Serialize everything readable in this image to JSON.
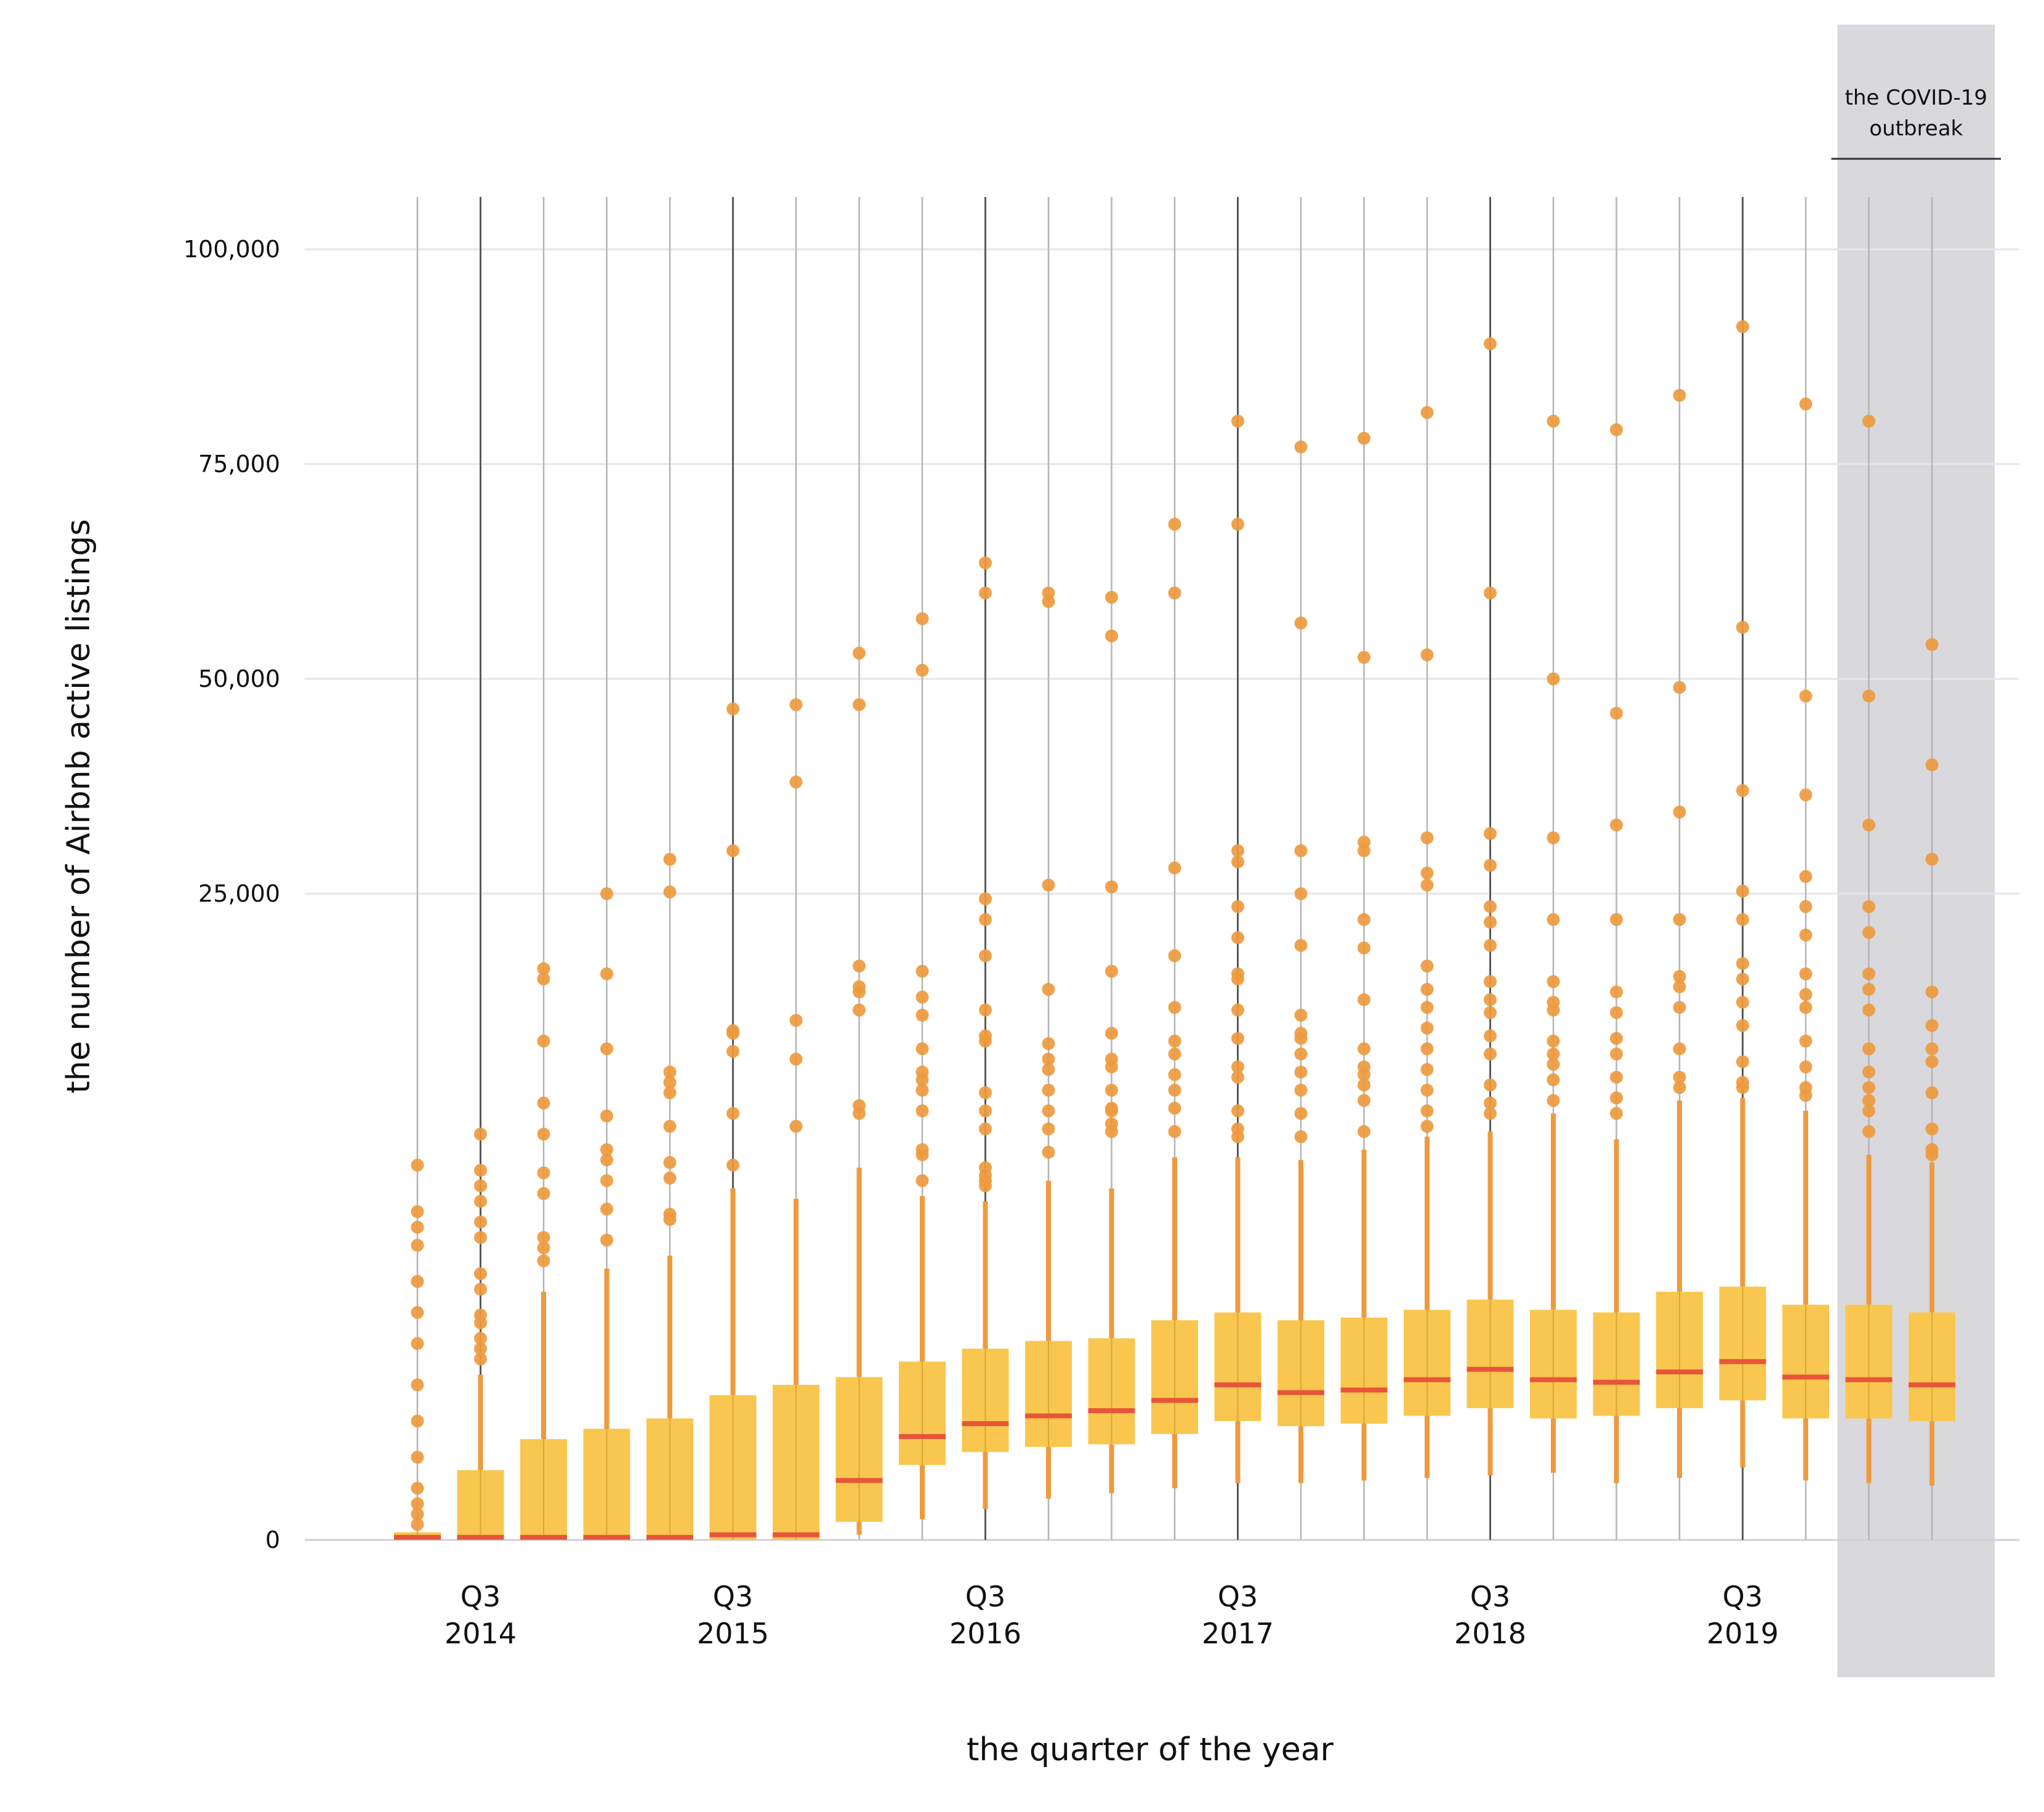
{
  "chart_data": {
    "type": "box",
    "title": "",
    "xlabel": "the quarter of the year",
    "ylabel": "the number of Airbnb active listings",
    "y_scale": "piecewise (compressed above 25,000)",
    "ylim": [
      0,
      100000
    ],
    "y_ticks": [
      {
        "value": 0,
        "label": "0"
      },
      {
        "value": 25000,
        "label": "25,000"
      },
      {
        "value": 50000,
        "label": "50,000"
      },
      {
        "value": 75000,
        "label": "75,000"
      },
      {
        "value": 100000,
        "label": "100,000"
      }
    ],
    "x_tick_labels": [
      {
        "quarter": "2014Q3",
        "line1": "Q3",
        "line2": "2014"
      },
      {
        "quarter": "2015Q3",
        "line1": "Q3",
        "line2": "2015"
      },
      {
        "quarter": "2016Q3",
        "line1": "Q3",
        "line2": "2016"
      },
      {
        "quarter": "2017Q3",
        "line1": "Q3",
        "line2": "2017"
      },
      {
        "quarter": "2018Q3",
        "line1": "Q3",
        "line2": "2018"
      },
      {
        "quarter": "2019Q3",
        "line1": "Q3",
        "line2": "2019"
      }
    ],
    "annotation": {
      "line1": "the COVID-19",
      "line2": "outbreak",
      "from_quarter": "2020Q1",
      "to_quarter": "2020Q2"
    },
    "colors": {
      "box": "#F9C74F",
      "median": "#E8553A",
      "whisker": "#EE9A3E",
      "outlier": "#EE9A3E",
      "shade": "#D9D8DC",
      "grid": "#E6E6E6"
    },
    "quarters": [
      {
        "q": "2014Q2",
        "q1": 0,
        "median": 100,
        "q3": 300,
        "whisker_low": 0,
        "whisker_high": 300,
        "outliers": [
          600,
          1000,
          1400,
          2000,
          3200,
          4600,
          6000,
          7600,
          8800,
          10000,
          11400,
          12100,
          12700,
          14500
        ]
      },
      {
        "q": "2014Q3",
        "q1": 0,
        "median": 100,
        "q3": 2700,
        "whisker_low": 0,
        "whisker_high": 6400,
        "outliers": [
          7000,
          7400,
          7800,
          8400,
          8700,
          9700,
          10300,
          11700,
          12300,
          13100,
          13700,
          14300,
          15700
        ]
      },
      {
        "q": "2014Q4",
        "q1": 0,
        "median": 100,
        "q3": 3900,
        "whisker_low": 0,
        "whisker_high": 9600,
        "outliers": [
          10800,
          11300,
          11700,
          13400,
          14200,
          15700,
          16900,
          19300,
          21700,
          22100
        ]
      },
      {
        "q": "2015Q1",
        "q1": 0,
        "median": 100,
        "q3": 4300,
        "whisker_low": 0,
        "whisker_high": 10500,
        "outliers": [
          11600,
          12800,
          13900,
          14700,
          15100,
          16400,
          19000,
          21900,
          25000
        ]
      },
      {
        "q": "2015Q2",
        "q1": 0,
        "median": 100,
        "q3": 4700,
        "whisker_low": 0,
        "whisker_high": 11000,
        "outliers": [
          12400,
          12600,
          14000,
          14600,
          16000,
          17300,
          17700,
          18100,
          25200,
          29000
        ]
      },
      {
        "q": "2015Q3",
        "q1": 0,
        "median": 200,
        "q3": 5600,
        "whisker_low": 0,
        "whisker_high": 13600,
        "outliers": [
          14500,
          16500,
          18900,
          19600,
          19700,
          30000,
          46500
        ]
      },
      {
        "q": "2015Q4",
        "q1": 0,
        "median": 200,
        "q3": 6000,
        "whisker_low": 0,
        "whisker_high": 13200,
        "outliers": [
          16000,
          18600,
          20100,
          38000,
          47000
        ]
      },
      {
        "q": "2016Q1",
        "q1": 700,
        "median": 2300,
        "q3": 6300,
        "whisker_low": 200,
        "whisker_high": 14400,
        "outliers": [
          16500,
          16800,
          20500,
          21200,
          21400,
          22200,
          47000,
          53000
        ]
      },
      {
        "q": "2016Q2",
        "q1": 2900,
        "median": 4000,
        "q3": 6900,
        "whisker_low": 800,
        "whisker_high": 13300,
        "outliers": [
          13900,
          14900,
          15100,
          16600,
          17400,
          17800,
          18100,
          19000,
          20300,
          21000,
          22000,
          51000,
          57000
        ]
      },
      {
        "q": "2016Q3",
        "q1": 3400,
        "median": 4500,
        "q3": 7400,
        "whisker_low": 1200,
        "whisker_high": 13100,
        "outliers": [
          13700,
          13900,
          14100,
          14400,
          15900,
          16600,
          17300,
          19300,
          19500,
          20500,
          22600,
          24000,
          24800,
          60000,
          63500
        ]
      },
      {
        "q": "2016Q4",
        "q1": 3600,
        "median": 4800,
        "q3": 7700,
        "whisker_low": 1600,
        "whisker_high": 13900,
        "outliers": [
          15000,
          15900,
          16600,
          17400,
          18200,
          18600,
          19200,
          21300,
          26000,
          59000,
          60000
        ]
      },
      {
        "q": "2017Q1",
        "q1": 3700,
        "median": 5000,
        "q3": 7800,
        "whisker_low": 1800,
        "whisker_high": 13600,
        "outliers": [
          15800,
          16100,
          16600,
          16700,
          17400,
          18300,
          18600,
          19600,
          22000,
          25800,
          55000,
          59500
        ]
      },
      {
        "q": "2017Q2",
        "q1": 4100,
        "median": 5400,
        "q3": 8500,
        "whisker_low": 2000,
        "whisker_high": 14800,
        "outliers": [
          15800,
          16700,
          17400,
          18000,
          18800,
          19300,
          20600,
          22600,
          28000,
          60000,
          68000
        ]
      },
      {
        "q": "2017Q3",
        "q1": 4600,
        "median": 6000,
        "q3": 8800,
        "whisker_low": 2200,
        "whisker_high": 14800,
        "outliers": [
          15600,
          15900,
          16600,
          17900,
          18300,
          19400,
          20500,
          21700,
          21900,
          23300,
          24500,
          28700,
          30000,
          68000,
          80000
        ]
      },
      {
        "q": "2017Q4",
        "q1": 4400,
        "median": 5700,
        "q3": 8500,
        "whisker_low": 2200,
        "whisker_high": 14700,
        "outliers": [
          15600,
          16500,
          17400,
          18100,
          18800,
          19400,
          19600,
          20300,
          23000,
          25000,
          30000,
          56500,
          77000
        ]
      },
      {
        "q": "2018Q1",
        "q1": 4500,
        "median": 5800,
        "q3": 8600,
        "whisker_low": 2300,
        "whisker_high": 15100,
        "outliers": [
          15800,
          17000,
          17600,
          18000,
          18300,
          19000,
          20900,
          22900,
          24000,
          30000,
          31000,
          52500,
          78000
        ]
      },
      {
        "q": "2018Q2",
        "q1": 4800,
        "median": 6200,
        "q3": 8900,
        "whisker_low": 2400,
        "whisker_high": 15600,
        "outliers": [
          16000,
          16600,
          17400,
          18200,
          19000,
          19800,
          20600,
          21300,
          22200,
          26000,
          27400,
          31500,
          52800,
          81000
        ]
      },
      {
        "q": "2018Q3",
        "q1": 5100,
        "median": 6600,
        "q3": 9300,
        "whisker_low": 2500,
        "whisker_high": 15800,
        "outliers": [
          16500,
          16900,
          17600,
          18800,
          19500,
          20400,
          20900,
          21600,
          23000,
          23900,
          24500,
          28300,
          32000,
          60000,
          89000
        ]
      },
      {
        "q": "2018Q4",
        "q1": 4700,
        "median": 6200,
        "q3": 8900,
        "whisker_low": 2600,
        "whisker_high": 16500,
        "outliers": [
          17000,
          17800,
          18400,
          18800,
          19300,
          20500,
          20800,
          21600,
          24000,
          31500,
          50000,
          80000
        ]
      },
      {
        "q": "2019Q1",
        "q1": 4800,
        "median": 6100,
        "q3": 8800,
        "whisker_low": 2200,
        "whisker_high": 15500,
        "outliers": [
          16500,
          17100,
          17900,
          18800,
          19400,
          20400,
          21200,
          24000,
          33000,
          46000,
          79000
        ]
      },
      {
        "q": "2019Q2",
        "q1": 5100,
        "median": 6500,
        "q3": 9600,
        "whisker_low": 2400,
        "whisker_high": 17000,
        "outliers": [
          17500,
          17900,
          19000,
          20600,
          21400,
          21800,
          24000,
          34500,
          49000,
          83000
        ]
      },
      {
        "q": "2019Q3",
        "q1": 5400,
        "median": 6900,
        "q3": 9800,
        "whisker_low": 2800,
        "whisker_high": 17100,
        "outliers": [
          17500,
          17700,
          18500,
          19900,
          20800,
          21700,
          22300,
          24000,
          25300,
          37000,
          56000,
          91000
        ]
      },
      {
        "q": "2019Q4",
        "q1": 4700,
        "median": 6300,
        "q3": 9100,
        "whisker_low": 2300,
        "whisker_high": 16600,
        "outliers": [
          17200,
          17500,
          18300,
          19300,
          20600,
          21100,
          21900,
          23400,
          24500,
          27000,
          36500,
          48000,
          82000
        ]
      },
      {
        "q": "2020Q1",
        "q1": 4700,
        "median": 6200,
        "q3": 9100,
        "whisker_low": 2200,
        "whisker_high": 14900,
        "outliers": [
          15800,
          16600,
          17000,
          17500,
          18100,
          19000,
          20500,
          21300,
          21900,
          23500,
          24500,
          33000,
          48000,
          80000
        ]
      },
      {
        "q": "2020Q2",
        "q1": 4600,
        "median": 6000,
        "q3": 8800,
        "whisker_low": 2100,
        "whisker_high": 14600,
        "outliers": [
          14900,
          15100,
          15900,
          17300,
          18500,
          19000,
          19900,
          21200,
          29000,
          40000,
          54000
        ]
      }
    ]
  }
}
